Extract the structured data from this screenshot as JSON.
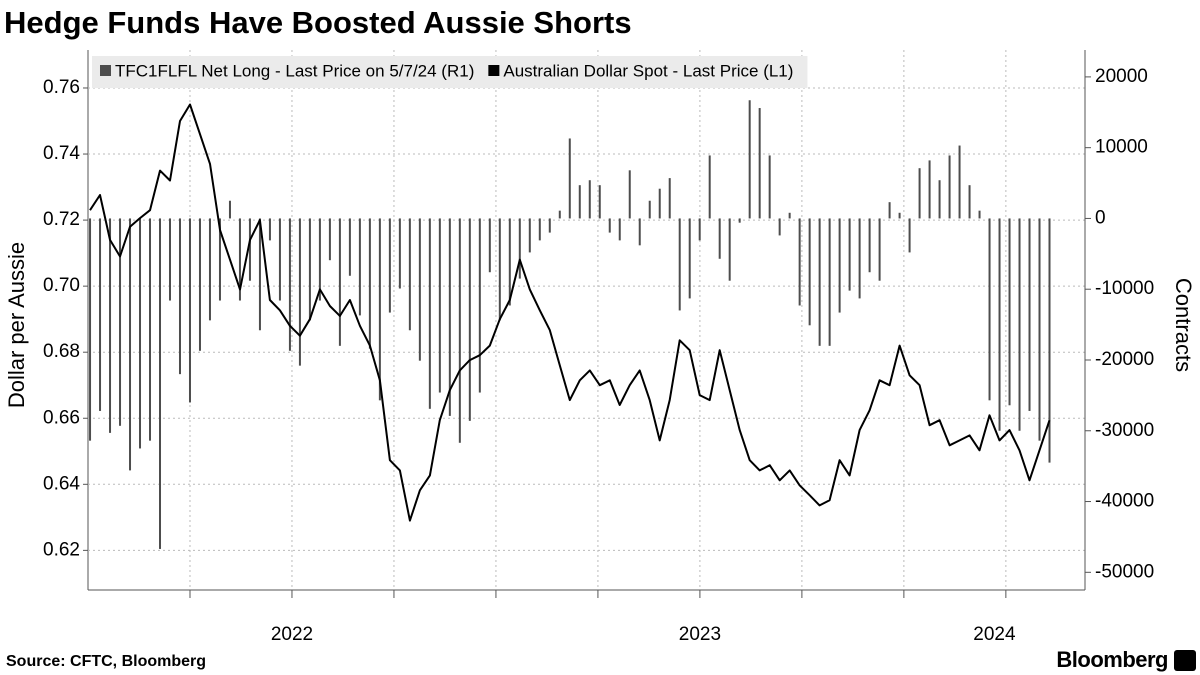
{
  "chart_data": {
    "type": "combo",
    "title": "Hedge Funds Have Boosted Aussie Shorts",
    "ylabel": "Dollar per Aussie",
    "y2label": "Contracts",
    "source": "Source: CFTC, Bloomberg",
    "brand": "Bloomberg",
    "xlim": [
      2022.0,
      2024.444
    ],
    "xticks": [
      {
        "value": 2022.5,
        "label": "2022"
      },
      {
        "value": 2023.5,
        "label": "2023"
      },
      {
        "value": 2024.222,
        "label": "2024"
      }
    ],
    "xgrid": [
      2022.25,
      2022.5,
      2022.75,
      2023.0,
      2023.25,
      2023.5,
      2023.75,
      2024.0,
      2024.25
    ],
    "ylim": [
      0.608,
      0.7715
    ],
    "yticks": [
      0.62,
      0.64,
      0.66,
      0.68,
      {
        "value": 0.7,
        "label": "0.70"
      },
      0.72,
      0.74,
      0.76
    ],
    "y2lim": [
      -52500,
      23800
    ],
    "y2ticks": [
      -50000,
      -40000,
      -30000,
      -20000,
      -10000,
      0,
      10000,
      20000
    ],
    "grid": true,
    "legend": "top-left",
    "x": [
      2022.005,
      2022.0295,
      2022.054,
      2022.0785,
      2022.103,
      2022.1275,
      2022.152,
      2022.1765,
      2022.201,
      2022.2255,
      2022.25,
      2022.2745,
      2022.299,
      2022.3235,
      2022.348,
      2022.3725,
      2022.397,
      2022.4215,
      2022.446,
      2022.4705,
      2022.495,
      2022.5195,
      2022.544,
      2022.5685,
      2022.593,
      2022.6175,
      2022.642,
      2022.6665,
      2022.691,
      2022.7155,
      2022.74,
      2022.7645,
      2022.789,
      2022.8135,
      2022.838,
      2022.8625,
      2022.887,
      2022.9115,
      2022.936,
      2022.9605,
      2022.985,
      2023.0095,
      2023.034,
      2023.0585,
      2023.083,
      2023.1075,
      2023.132,
      2023.1565,
      2023.181,
      2023.2055,
      2023.23,
      2023.2545,
      2023.279,
      2023.3035,
      2023.328,
      2023.3525,
      2023.377,
      2023.4015,
      2023.426,
      2023.4505,
      2023.475,
      2023.4995,
      2023.524,
      2023.5485,
      2023.573,
      2023.5975,
      2023.622,
      2023.6465,
      2023.671,
      2023.6955,
      2023.72,
      2023.7445,
      2023.769,
      2023.7935,
      2023.818,
      2023.8425,
      2023.867,
      2023.8915,
      2023.916,
      2023.9405,
      2023.965,
      2023.9895,
      2024.014,
      2024.0385,
      2024.063,
      2024.0875,
      2024.112,
      2024.1365,
      2024.161,
      2024.1855,
      2024.21,
      2024.2345,
      2024.259,
      2024.2835,
      2024.308,
      2024.3325,
      2024.357
    ],
    "series": [
      {
        "name": "TFC1FLFL Net Long - Last Price on 5/7/24 (R1)",
        "type": "bar",
        "axis": "y2",
        "color": "#4d4d4d",
        "values": [
          -31400,
          -27200,
          -30300,
          -29300,
          -35600,
          -32500,
          -31400,
          -46700,
          -11600,
          -22000,
          -26000,
          -18700,
          -14400,
          -11600,
          2500,
          -11600,
          -8800,
          -15800,
          -3100,
          -11600,
          -18700,
          -20800,
          -14400,
          -11600,
          -5900,
          -18000,
          -8100,
          -13700,
          -18400,
          -25700,
          -13300,
          -9900,
          -15800,
          -20100,
          -26900,
          -24600,
          -27900,
          -31700,
          -28600,
          -24600,
          -7600,
          -14400,
          -12300,
          -8500,
          -4800,
          -3100,
          -2000,
          1100,
          11300,
          4700,
          5400,
          4700,
          -2000,
          -3100,
          6800,
          -3800,
          2500,
          4200,
          5700,
          -13000,
          -11300,
          -3100,
          8900,
          -5700,
          -8800,
          -600,
          16700,
          15600,
          8900,
          -2400,
          800,
          -12300,
          -15100,
          -18000,
          -18000,
          -13300,
          -10200,
          -11300,
          -7600,
          -8800,
          2300,
          800,
          -4800,
          7100,
          8200,
          5400,
          8900,
          10300,
          4700,
          1100,
          -25700,
          -30000,
          -26400,
          -30000,
          -27200,
          -31400,
          -34500
        ]
      },
      {
        "name": "Australian Dollar Spot - Last Price (L1)",
        "type": "line",
        "axis": "y",
        "color": "#000000",
        "values": [
          0.723,
          0.7276,
          0.714,
          0.709,
          0.718,
          0.7206,
          0.723,
          0.735,
          0.732,
          0.75,
          0.755,
          0.746,
          0.737,
          0.717,
          0.708,
          0.699,
          0.714,
          0.72,
          0.6958,
          0.6927,
          0.688,
          0.685,
          0.69,
          0.699,
          0.694,
          0.691,
          0.6958,
          0.688,
          0.682,
          0.6715,
          0.6473,
          0.6442,
          0.629,
          0.6382,
          0.6427,
          0.6594,
          0.6685,
          0.6745,
          0.6776,
          0.6791,
          0.682,
          0.69,
          0.6958,
          0.708,
          0.699,
          0.6927,
          0.6867,
          0.676,
          0.6655,
          0.6715,
          0.6745,
          0.67,
          0.6715,
          0.664,
          0.67,
          0.6745,
          0.6655,
          0.6533,
          0.6655,
          0.6836,
          0.6806,
          0.667,
          0.6655,
          0.6806,
          0.6685,
          0.6564,
          0.6473,
          0.6442,
          0.6458,
          0.6412,
          0.6442,
          0.6397,
          0.6367,
          0.6336,
          0.6352,
          0.6473,
          0.6427,
          0.6564,
          0.6624,
          0.6715,
          0.67,
          0.682,
          0.673,
          0.67,
          0.6579,
          0.6594,
          0.6518,
          0.6533,
          0.6548,
          0.6503,
          0.6609,
          0.6533,
          0.6564,
          0.6503,
          0.6412,
          0.6503,
          0.6594
        ]
      }
    ]
  }
}
